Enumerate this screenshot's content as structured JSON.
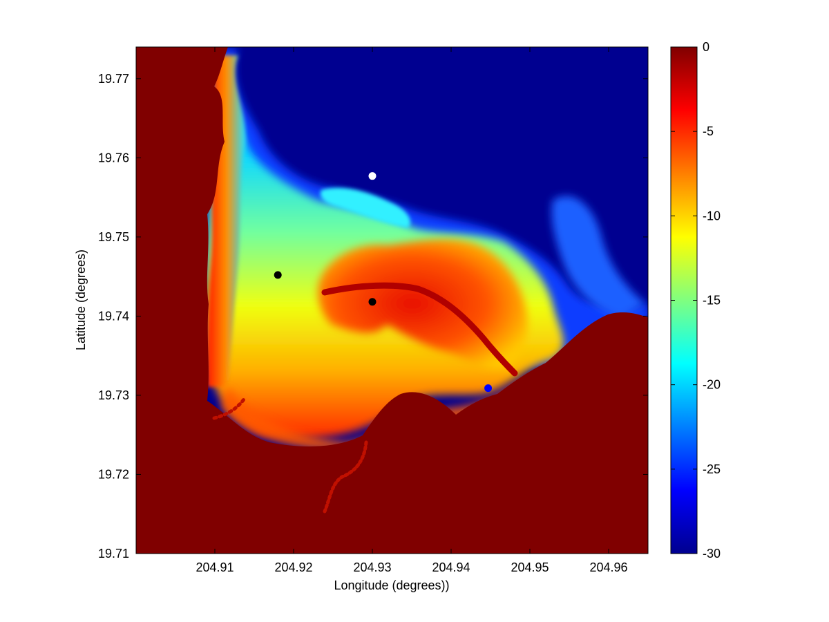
{
  "chart_data": {
    "type": "heatmap",
    "title": "",
    "xlabel": "Longitude (degrees))",
    "ylabel": "Latitude (degrees)",
    "xlim": [
      204.9,
      204.965
    ],
    "ylim": [
      19.71,
      19.774
    ],
    "xticks": [
      204.91,
      204.92,
      204.93,
      204.94,
      204.95,
      204.96
    ],
    "xtick_labels": [
      "204.91",
      "204.92",
      "204.93",
      "204.94",
      "204.95",
      "204.96"
    ],
    "yticks": [
      19.71,
      19.72,
      19.73,
      19.74,
      19.75,
      19.76,
      19.77
    ],
    "ytick_labels": [
      "19.71",
      "19.72",
      "19.73",
      "19.74",
      "19.75",
      "19.76",
      "19.77"
    ],
    "colorbar": {
      "colormap": "jet",
      "range": [
        -30,
        0
      ],
      "ticks": [
        0,
        -5,
        -10,
        -15,
        -20,
        -25,
        -30
      ],
      "tick_labels": [
        "0",
        "-5",
        "-10",
        "-15",
        "-20",
        "-25",
        "-30"
      ]
    },
    "grid": false,
    "markers": [
      {
        "lon": 204.93,
        "lat": 19.7577,
        "color": "#ffffff"
      },
      {
        "lon": 204.918,
        "lat": 19.7452,
        "color": "#000000"
      },
      {
        "lon": 204.93,
        "lat": 19.7418,
        "color": "#000000"
      },
      {
        "lon": 204.9447,
        "lat": 19.7309,
        "color": "#0000ff"
      }
    ],
    "colors": {
      "land": "#800000",
      "deep": "#000090"
    }
  }
}
